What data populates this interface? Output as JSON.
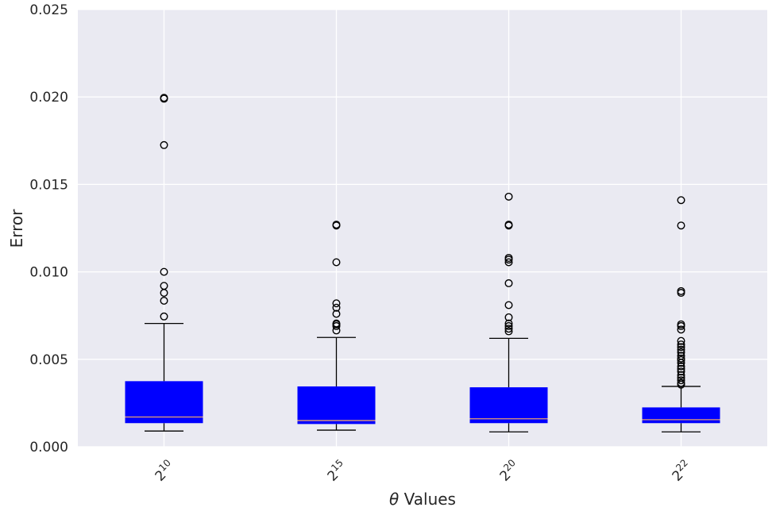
{
  "chart_data": {
    "type": "box",
    "title": "",
    "xlabel_symbol": "θ",
    "xlabel_rest": " Values",
    "ylabel": "Error",
    "ylim": [
      0,
      0.025
    ],
    "yticks": [
      0.0,
      0.005,
      0.01,
      0.015,
      0.02,
      0.025
    ],
    "ytick_labels": [
      "0.000",
      "0.005",
      "0.010",
      "0.015",
      "0.020",
      "0.025"
    ],
    "grid": true,
    "colors": {
      "plot_bg": "#eaeaf2",
      "box_fill": "#0000ff",
      "median": "#e8a070",
      "whisker": "#000000",
      "grid": "#ffffff"
    },
    "groups": [
      {
        "label_base": "2",
        "label_exp": "10",
        "whisker_low": 0.0009,
        "q1": 0.00135,
        "median": 0.0017,
        "q3": 0.00375,
        "whisker_high": 0.00705,
        "outliers": [
          0.00745,
          0.00835,
          0.0088,
          0.0092,
          0.01,
          0.01725,
          0.0199,
          0.01995
        ]
      },
      {
        "label_base": "2",
        "label_exp": "15",
        "whisker_low": 0.00095,
        "q1": 0.0013,
        "median": 0.0015,
        "q3": 0.00345,
        "whisker_high": 0.00625,
        "outliers": [
          0.00665,
          0.0069,
          0.007,
          0.00705,
          0.0076,
          0.00795,
          0.0082,
          0.01055,
          0.01265,
          0.0127
        ]
      },
      {
        "label_base": "2",
        "label_exp": "20",
        "whisker_low": 0.00085,
        "q1": 0.00135,
        "median": 0.0016,
        "q3": 0.0034,
        "whisker_high": 0.0062,
        "outliers": [
          0.0066,
          0.00675,
          0.0069,
          0.00705,
          0.0074,
          0.0081,
          0.00935,
          0.01055,
          0.0107,
          0.0108,
          0.01265,
          0.0127,
          0.0143
        ]
      },
      {
        "label_base": "2",
        "label_exp": "22",
        "whisker_low": 0.00085,
        "q1": 0.00135,
        "median": 0.00155,
        "q3": 0.00225,
        "whisker_high": 0.00345,
        "outliers": [
          0.00355,
          0.00365,
          0.0038,
          0.00395,
          0.0041,
          0.0043,
          0.00445,
          0.0046,
          0.0048,
          0.00495,
          0.00505,
          0.0052,
          0.0054,
          0.00555,
          0.0057,
          0.00585,
          0.00605,
          0.0067,
          0.0069,
          0.007,
          0.0088,
          0.0089,
          0.01265,
          0.0141
        ]
      }
    ]
  }
}
